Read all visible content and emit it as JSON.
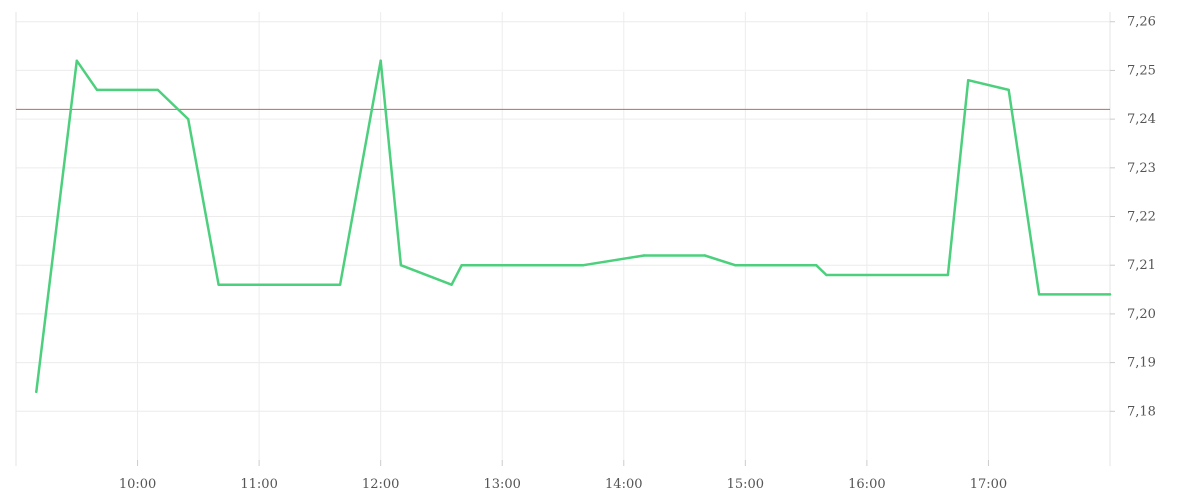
{
  "chart_data": {
    "type": "line",
    "title": "",
    "xlabel": "",
    "ylabel": "",
    "x_tick_labels": [
      "10:00",
      "11:00",
      "12:00",
      "13:00",
      "14:00",
      "15:00",
      "16:00",
      "17:00"
    ],
    "y_tick_labels": [
      "7,18",
      "7,19",
      "7,20",
      "7,21",
      "7,22",
      "7,23",
      "7,24",
      "7,25",
      "7,26"
    ],
    "xlim": [
      "09:00",
      "18:00"
    ],
    "ylim": [
      7.17,
      7.262
    ],
    "grid": true,
    "series": [
      {
        "color": "#4cd07d",
        "points": [
          [
            "09:10",
            7.184
          ],
          [
            "09:30",
            7.252
          ],
          [
            "09:40",
            7.246
          ],
          [
            "10:10",
            7.246
          ],
          [
            "10:25",
            7.24
          ],
          [
            "10:40",
            7.206
          ],
          [
            "11:40",
            7.206
          ],
          [
            "12:00",
            7.252
          ],
          [
            "12:10",
            7.21
          ],
          [
            "12:35",
            7.206
          ],
          [
            "12:40",
            7.21
          ],
          [
            "13:40",
            7.21
          ],
          [
            "14:10",
            7.212
          ],
          [
            "14:40",
            7.212
          ],
          [
            "14:55",
            7.21
          ],
          [
            "15:35",
            7.21
          ],
          [
            "15:40",
            7.208
          ],
          [
            "16:40",
            7.208
          ],
          [
            "16:50",
            7.248
          ],
          [
            "17:10",
            7.246
          ],
          [
            "17:25",
            7.204
          ],
          [
            "18:00",
            7.204
          ]
        ]
      }
    ],
    "reference_line": {
      "value": 7.242,
      "color": "#c0646e"
    }
  }
}
